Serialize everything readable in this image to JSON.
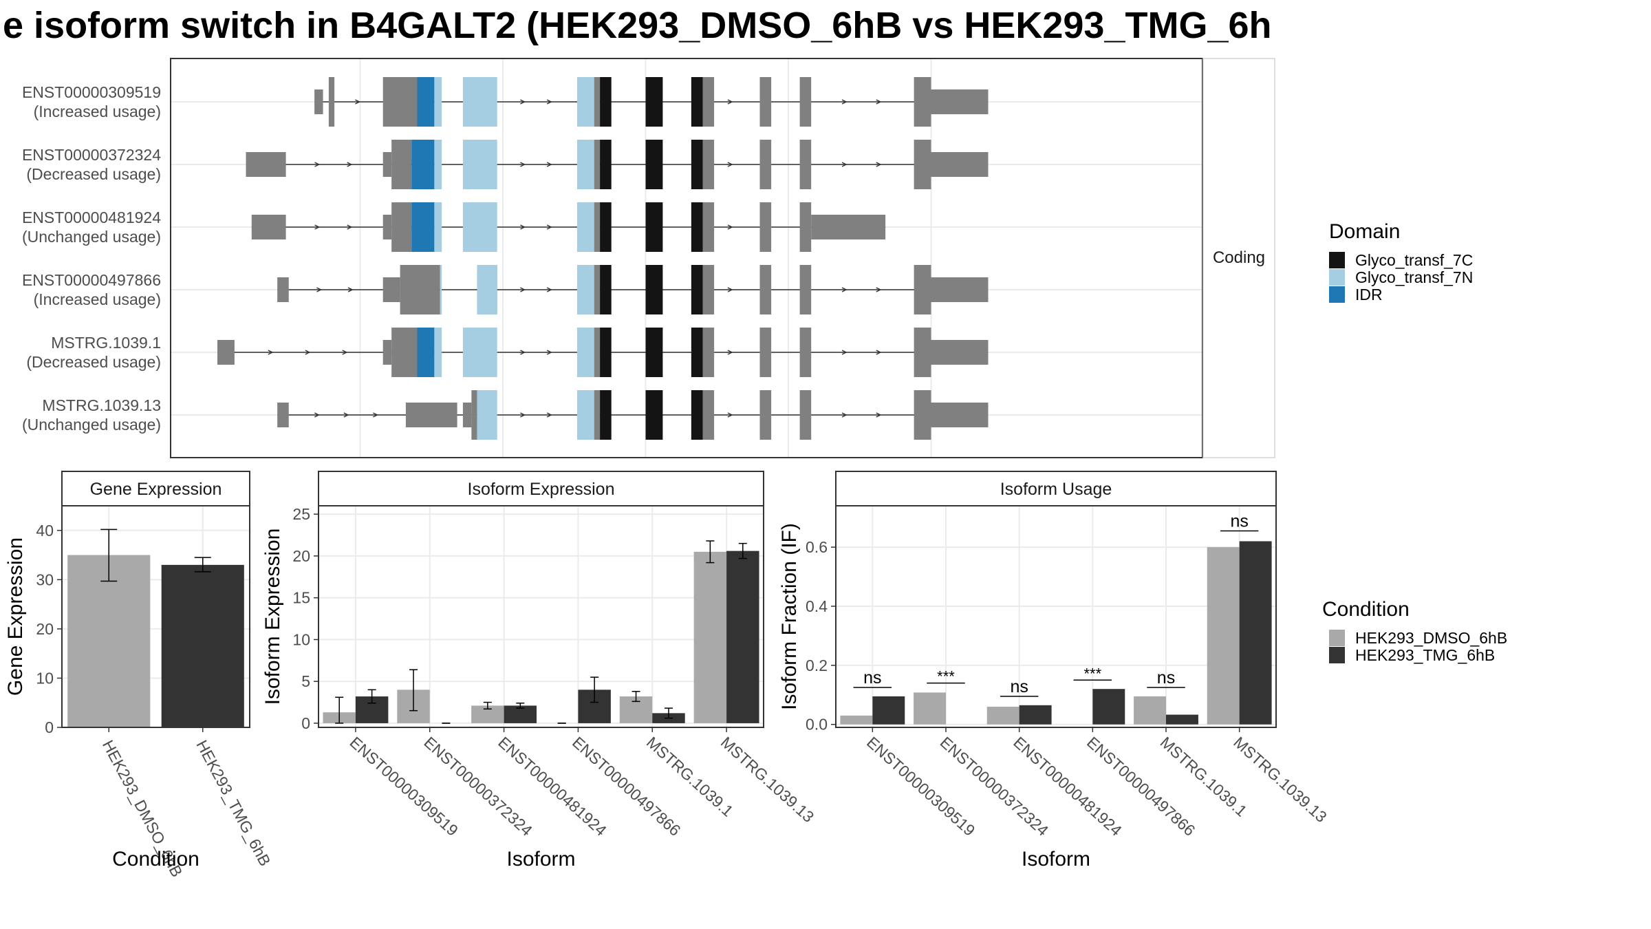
{
  "title": "e isoform switch in B4GALT2 (HEK293_DMSO_6hB vs HEK293_TMG_6h",
  "colors": {
    "utr": "#808080",
    "glyco_7C": "#141414",
    "glyco_7N": "#a6cee3",
    "idr": "#1f78b4",
    "dmso": "#a9a9a9",
    "tmg": "#333333",
    "grid": "#ebebeb",
    "strip": "#ffffff",
    "panel_border": "#333333"
  },
  "structure": {
    "strip_label": "Coding",
    "x_range": [
      0,
      100
    ],
    "transcripts": [
      {
        "id": "ENST00000309519",
        "usage": "(Increased usage)",
        "utr": [
          [
            17,
            18.5,
            "s"
          ],
          [
            19.5,
            20.5,
            "t"
          ],
          [
            29,
            35,
            "t"
          ],
          [
            64,
            67,
            "t"
          ],
          [
            83,
            87,
            "t"
          ],
          [
            95,
            97,
            "t"
          ],
          [
            102,
            104,
            "t"
          ],
          [
            122,
            125,
            "t"
          ],
          [
            125,
            135,
            "s"
          ]
        ],
        "dom": [
          [
            35,
            38,
            "idr"
          ],
          [
            38,
            39.3,
            "n"
          ],
          [
            43,
            49,
            "n"
          ],
          [
            63,
            66,
            "n"
          ],
          [
            67,
            69,
            "c"
          ],
          [
            75,
            78,
            "c"
          ],
          [
            83,
            85,
            "c"
          ]
        ]
      },
      {
        "id": "ENST00000372324",
        "usage": "(Decreased usage)",
        "utr": [
          [
            5,
            12,
            "s"
          ],
          [
            29,
            30.5,
            "s"
          ],
          [
            30.5,
            34,
            "t"
          ],
          [
            64,
            67,
            "t"
          ],
          [
            83,
            87,
            "t"
          ],
          [
            95,
            97,
            "t"
          ],
          [
            102,
            104,
            "t"
          ],
          [
            122,
            125,
            "t"
          ],
          [
            125,
            135,
            "s"
          ]
        ],
        "dom": [
          [
            34,
            38,
            "idr"
          ],
          [
            38,
            39.3,
            "n"
          ],
          [
            43,
            49,
            "n"
          ],
          [
            63,
            66,
            "n"
          ],
          [
            67,
            69,
            "c"
          ],
          [
            75,
            78,
            "c"
          ],
          [
            83,
            85,
            "c"
          ]
        ]
      },
      {
        "id": "ENST00000481924",
        "usage": "(Unchanged usage)",
        "utr": [
          [
            6,
            12,
            "s"
          ],
          [
            29,
            30.5,
            "s"
          ],
          [
            30.5,
            34,
            "t"
          ],
          [
            64,
            67,
            "t"
          ],
          [
            83,
            87,
            "t"
          ],
          [
            95,
            97,
            "t"
          ],
          [
            102,
            104,
            "t"
          ],
          [
            104,
            117,
            "s"
          ]
        ],
        "dom": [
          [
            34,
            38,
            "idr"
          ],
          [
            38,
            39.3,
            "n"
          ],
          [
            43,
            49,
            "n"
          ],
          [
            63,
            66,
            "n"
          ],
          [
            67,
            69,
            "c"
          ],
          [
            75,
            78,
            "c"
          ],
          [
            83,
            85,
            "c"
          ]
        ]
      },
      {
        "id": "ENST00000497866",
        "usage": "(Increased usage)",
        "utr": [
          [
            10.5,
            12.5,
            "s"
          ],
          [
            29,
            32,
            "s"
          ],
          [
            32,
            39,
            "t"
          ],
          [
            45.5,
            49,
            "t"
          ],
          [
            64,
            67,
            "t"
          ],
          [
            83,
            87,
            "t"
          ],
          [
            95,
            97,
            "t"
          ],
          [
            102,
            104,
            "t"
          ],
          [
            122,
            125,
            "t"
          ],
          [
            125,
            135,
            "s"
          ]
        ],
        "dom": [
          [
            39,
            39.3,
            "n"
          ],
          [
            45.5,
            49,
            "n"
          ],
          [
            63,
            66,
            "n"
          ],
          [
            67,
            69,
            "c"
          ],
          [
            75,
            78,
            "c"
          ],
          [
            83,
            85,
            "c"
          ]
        ]
      },
      {
        "id": "MSTRG.1039.1",
        "usage": "(Decreased usage)",
        "utr": [
          [
            0,
            3,
            "s"
          ],
          [
            29,
            30.5,
            "s"
          ],
          [
            30.5,
            35,
            "t"
          ],
          [
            64,
            67,
            "t"
          ],
          [
            83,
            87,
            "t"
          ],
          [
            95,
            97,
            "t"
          ],
          [
            102,
            104,
            "t"
          ],
          [
            122,
            125,
            "t"
          ],
          [
            125,
            135,
            "s"
          ]
        ],
        "dom": [
          [
            35,
            38,
            "idr"
          ],
          [
            38,
            39.3,
            "n"
          ],
          [
            43,
            49,
            "n"
          ],
          [
            63,
            66,
            "n"
          ],
          [
            67,
            69,
            "c"
          ],
          [
            75,
            78,
            "c"
          ],
          [
            83,
            85,
            "c"
          ]
        ]
      },
      {
        "id": "MSTRG.1039.13",
        "usage": "(Unchanged usage)",
        "utr": [
          [
            10.5,
            12.5,
            "s"
          ],
          [
            33,
            42,
            "s"
          ],
          [
            43,
            44.5,
            "s"
          ],
          [
            44.5,
            45.5,
            "t"
          ],
          [
            64,
            67,
            "t"
          ],
          [
            83,
            87,
            "t"
          ],
          [
            95,
            97,
            "t"
          ],
          [
            102,
            104,
            "t"
          ],
          [
            122,
            125,
            "t"
          ],
          [
            125,
            135,
            "s"
          ]
        ],
        "dom": [
          [
            45.5,
            49,
            "n"
          ],
          [
            63,
            66,
            "n"
          ],
          [
            67,
            69,
            "c"
          ],
          [
            75,
            78,
            "c"
          ],
          [
            83,
            85,
            "c"
          ]
        ]
      }
    ]
  },
  "domain_legend": {
    "title": "Domain",
    "items": [
      {
        "label": "Glyco_transf_7C",
        "color": "#141414"
      },
      {
        "label": "Glyco_transf_7N",
        "color": "#a6cee3"
      },
      {
        "label": "IDR",
        "color": "#1f78b4"
      }
    ]
  },
  "condition_legend": {
    "title": "Condition",
    "items": [
      {
        "label": "HEK293_DMSO_6hB",
        "color": "#a9a9a9"
      },
      {
        "label": "HEK293_TMG_6hB",
        "color": "#333333"
      }
    ]
  },
  "chart_data": [
    {
      "type": "bar",
      "title": "Gene Expression",
      "xlabel": "Condition",
      "ylabel": "Gene Expression",
      "categories": [
        "HEK293_DMSO_6hB",
        "HEK293_TMG_6hB"
      ],
      "values": [
        35,
        33
      ],
      "errors": [
        [
          29.7,
          40.2
        ],
        [
          31.6,
          34.5
        ]
      ],
      "ylim": [
        0,
        45
      ],
      "yticks": [
        0,
        10,
        20,
        30,
        40
      ]
    },
    {
      "type": "bar",
      "title": "Isoform Expression",
      "xlabel": "Isoform",
      "ylabel": "Isoform Expression",
      "categories": [
        "ENST00000309519",
        "ENST00000372324",
        "ENST00000481924",
        "ENST00000497866",
        "MSTRG.1039.1",
        "MSTRG.1039.13"
      ],
      "series": [
        {
          "name": "HEK293_DMSO_6hB",
          "values": [
            1.3,
            4.0,
            2.1,
            0,
            3.2,
            20.5
          ],
          "errors": [
            [
              0,
              3.1
            ],
            [
              1.5,
              6.4
            ],
            [
              1.7,
              2.5
            ],
            [
              0,
              0
            ],
            [
              2.6,
              3.8
            ],
            [
              19.2,
              21.8
            ]
          ]
        },
        {
          "name": "HEK293_TMG_6hB",
          "values": [
            3.2,
            0,
            2.1,
            4.0,
            1.2,
            20.6
          ],
          "errors": [
            [
              2.4,
              4.0
            ],
            [
              0,
              0
            ],
            [
              1.8,
              2.4
            ],
            [
              2.5,
              5.5
            ],
            [
              0.6,
              1.8
            ],
            [
              19.7,
              21.5
            ]
          ]
        }
      ],
      "ylim": [
        -0.5,
        26
      ],
      "yticks": [
        0,
        5,
        10,
        15,
        20,
        25
      ]
    },
    {
      "type": "bar",
      "title": "Isoform Usage",
      "xlabel": "Isoform",
      "ylabel": "Isoform Fraction (IF)",
      "categories": [
        "ENST00000309519",
        "ENST00000372324",
        "ENST00000481924",
        "ENST00000497866",
        "MSTRG.1039.1",
        "MSTRG.1039.13"
      ],
      "series": [
        {
          "name": "HEK293_DMSO_6hB",
          "values": [
            0.03,
            0.108,
            0.06,
            0,
            0.095,
            0.6
          ]
        },
        {
          "name": "HEK293_TMG_6hB",
          "values": [
            0.095,
            0,
            0.065,
            0.12,
            0.033,
            0.62
          ]
        }
      ],
      "significance": [
        "ns",
        "***",
        "ns",
        "***",
        "ns",
        "ns"
      ],
      "sig_y": [
        0.125,
        0.14,
        0.095,
        0.15,
        0.125,
        0.655
      ],
      "ylim": [
        -0.01,
        0.74
      ],
      "yticks": [
        0.0,
        0.2,
        0.4,
        0.6
      ],
      "ytick_labels": [
        "0.0",
        "0.2",
        "0.4",
        "0.6"
      ]
    }
  ]
}
